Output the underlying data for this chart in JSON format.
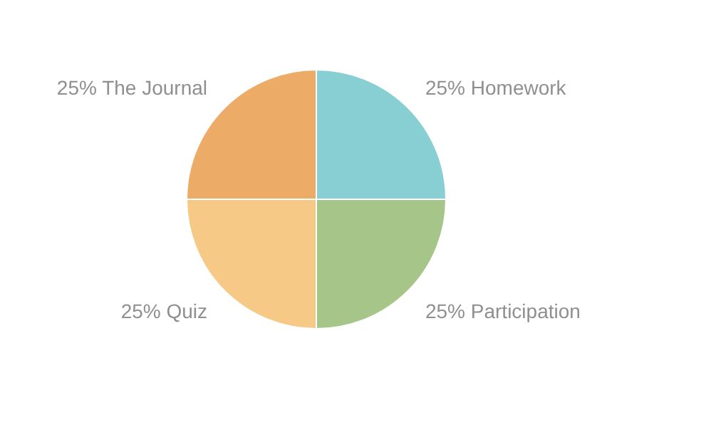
{
  "chart_data": {
    "type": "pie",
    "categories": [
      "Homework",
      "Participation",
      "Quiz",
      "The Journal"
    ],
    "values": [
      25,
      25,
      25,
      25
    ],
    "value_labels": [
      "25%",
      "25%",
      "25%",
      "25%"
    ],
    "colors": [
      "#88cfd4",
      "#a5c589",
      "#f6c987",
      "#ecab66"
    ]
  }
}
